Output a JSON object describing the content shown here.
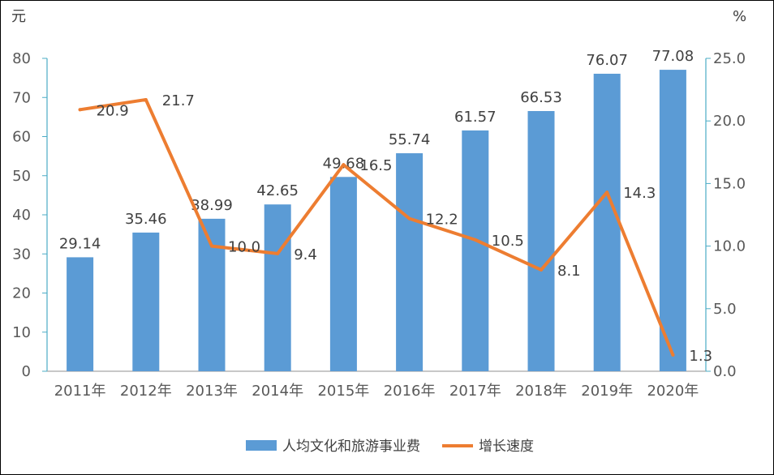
{
  "chart_data": {
    "type": "bar",
    "categories": [
      "2011年",
      "2012年",
      "2013年",
      "2014年",
      "2015年",
      "2016年",
      "2017年",
      "2018年",
      "2019年",
      "2020年"
    ],
    "series": [
      {
        "name": "人均文化和旅游事业费",
        "type": "bar",
        "axis": "left",
        "values": [
          29.14,
          35.46,
          38.99,
          42.65,
          49.68,
          55.74,
          61.57,
          66.53,
          76.07,
          77.08
        ],
        "value_labels": [
          "29.14",
          "35.46",
          "38.99",
          "42.65",
          "49.68",
          "55.74",
          "61.57",
          "66.53",
          "76.07",
          "77.08"
        ],
        "color": "#5B9BD5"
      },
      {
        "name": "增长速度",
        "type": "line",
        "axis": "right",
        "values": [
          20.9,
          21.7,
          10.0,
          9.4,
          16.5,
          12.2,
          10.5,
          8.1,
          14.3,
          1.3
        ],
        "value_labels": [
          "20.9",
          "21.7",
          "10.0",
          "9.4",
          "16.5",
          "12.2",
          "10.5",
          "8.1",
          "14.3",
          "1.3"
        ],
        "color": "#ED7D31"
      }
    ],
    "y_left": {
      "unit_label": "元",
      "range": [
        0,
        80
      ],
      "ticks": [
        "0",
        "10",
        "20",
        "30",
        "40",
        "50",
        "60",
        "70",
        "80"
      ]
    },
    "y_right": {
      "unit_label": "%",
      "range": [
        0,
        25
      ],
      "ticks": [
        "0.0",
        "5.0",
        "10.0",
        "15.0",
        "20.0",
        "25.0"
      ]
    },
    "grid": false,
    "legend_position": "bottom-center",
    "axis_color": "#4BACC6"
  }
}
